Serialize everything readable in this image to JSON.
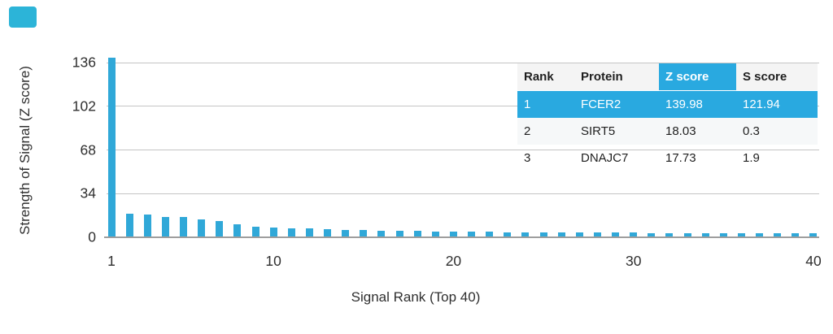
{
  "colors": {
    "accent": "#29A9E0",
    "bar": "#30A8D8",
    "gridline": "#C4C4C4",
    "axis_line": "#9E9E9E",
    "logo": "#2CB4D8",
    "header_bg": "#F4F4F4",
    "stripe_bg": "#F6F8F9"
  },
  "chart_data": {
    "type": "bar",
    "title": "",
    "xlabel": "Signal Rank (Top 40)",
    "ylabel": "Strength of Signal (Z score)",
    "yticks": [
      0,
      34,
      68,
      102,
      136
    ],
    "xticks": [
      1,
      10,
      20,
      30,
      40
    ],
    "ylim": [
      0,
      140
    ],
    "grid": "horizontal",
    "legend_position": "none",
    "x": [
      1,
      2,
      3,
      4,
      5,
      6,
      7,
      8,
      9,
      10,
      11,
      12,
      13,
      14,
      15,
      16,
      17,
      18,
      19,
      20,
      21,
      22,
      23,
      24,
      25,
      26,
      27,
      28,
      29,
      30,
      31,
      32,
      33,
      34,
      35,
      36,
      37,
      38,
      39,
      40
    ],
    "values": [
      139.98,
      18.03,
      17.73,
      16.1,
      15.5,
      14.0,
      12.9,
      10.0,
      8.0,
      7.3,
      7.2,
      6.7,
      6.2,
      5.9,
      5.6,
      5.3,
      5.1,
      4.9,
      4.7,
      4.6,
      4.4,
      4.3,
      4.1,
      4.0,
      3.9,
      3.8,
      3.7,
      3.6,
      3.5,
      3.5,
      3.4,
      3.3,
      3.3,
      3.2,
      3.1,
      3.1,
      3.0,
      3.0,
      2.9,
      2.9
    ]
  },
  "table": {
    "columns": [
      "Rank",
      "Protein",
      "Z score",
      "S score"
    ],
    "highlighted_column": "Z score",
    "highlighted_row_rank": "1",
    "rows": [
      {
        "rank": "1",
        "protein": "FCER2",
        "z_score": "139.98",
        "s_score": "121.94",
        "highlight": true
      },
      {
        "rank": "2",
        "protein": "SIRT5",
        "z_score": "18.03",
        "s_score": "0.3",
        "highlight": false
      },
      {
        "rank": "3",
        "protein": "DNAJC7",
        "z_score": "17.73",
        "s_score": "1.9",
        "highlight": false
      }
    ]
  }
}
